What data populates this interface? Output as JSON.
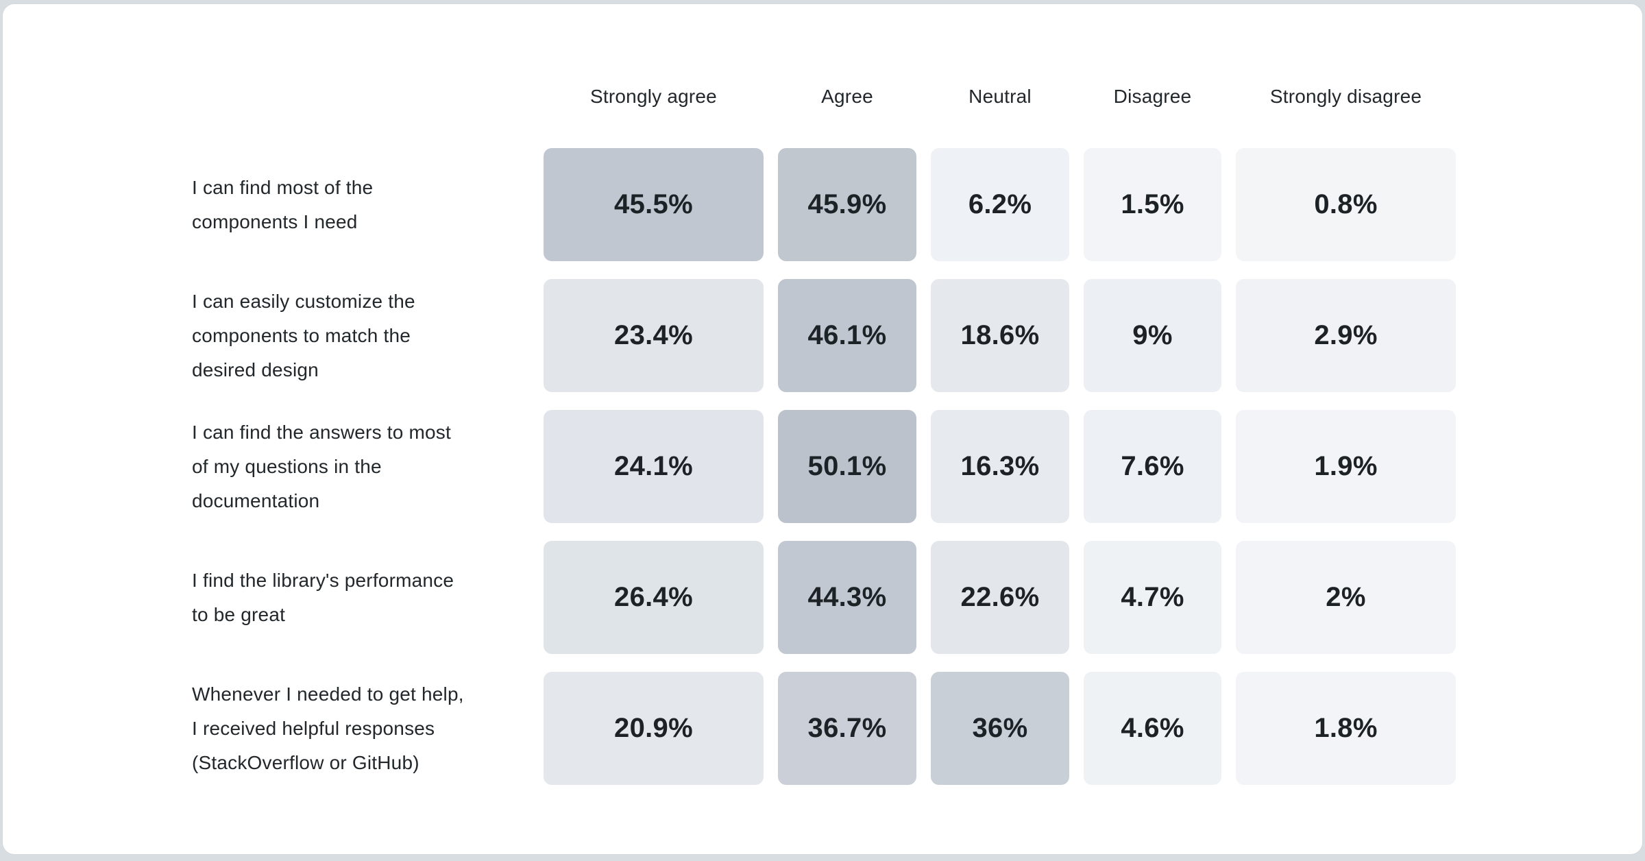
{
  "theme": {
    "page_bg": "#d8dde1",
    "card_bg": "#ffffff",
    "card_border": "#d2d8dc",
    "header_text": "#21272a",
    "label_text": "#21272a",
    "value_text": "#1d2227",
    "cell_color_min": "#f3f5f8",
    "cell_color_max": "#bbc2cc"
  },
  "chart_data": {
    "type": "heatmap",
    "title": "",
    "legend_position": "none",
    "columns": [
      "Strongly agree",
      "Agree",
      "Neutral",
      "Disagree",
      "Strongly disagree"
    ],
    "rows": [
      {
        "label": "I can find most of the\ncomponents I need",
        "values": [
          "45.5%",
          "45.9%",
          "6.2%",
          "1.5%",
          "0.8%"
        ],
        "numeric": [
          45.5,
          45.9,
          6.2,
          1.5,
          0.8
        ],
        "colors": [
          "#c1c7d0",
          "#c0c7cf",
          "#eef1f5",
          "#f2f4f7",
          "#f3f5f7"
        ]
      },
      {
        "label": "I can easily customize the\ncomponents to match the\ndesired design",
        "values": [
          "23.4%",
          "46.1%",
          "18.6%",
          "9%",
          "2.9%"
        ],
        "numeric": [
          23.4,
          46.1,
          18.6,
          9,
          2.9
        ],
        "colors": [
          "#e2e6eb",
          "#c0c6cf",
          "#e5e9ee",
          "#eceff3",
          "#f0f2f6"
        ]
      },
      {
        "label": "I can find the answers to most\nof my questions in the\ndocumentation",
        "values": [
          "24.1%",
          "50.1%",
          "16.3%",
          "7.6%",
          "1.9%"
        ],
        "numeric": [
          24.1,
          50.1,
          16.3,
          7.6,
          1.9
        ],
        "colors": [
          "#e1e5eb",
          "#bbc2cc",
          "#e7eaef",
          "#edf0f4",
          "#f2f4f7"
        ]
      },
      {
        "label": "I find the library's performance\nto be great",
        "values": [
          "26.4%",
          "44.3%",
          "22.6%",
          "4.7%",
          "2%"
        ],
        "numeric": [
          26.4,
          44.3,
          22.6,
          4.7,
          2
        ],
        "colors": [
          "#dfe4e9",
          "#c2c8d1",
          "#e3e7ec",
          "#eff2f5",
          "#f2f4f7"
        ]
      },
      {
        "label": "Whenever I needed to get help,\nI received helpful responses\n(StackOverflow or GitHub)",
        "values": [
          "20.9%",
          "36.7%",
          "36%",
          "4.6%",
          "1.8%"
        ],
        "numeric": [
          20.9,
          36.7,
          36,
          4.6,
          1.8
        ],
        "colors": [
          "#e4e8ed",
          "#cacfd8",
          "#c9cfd7",
          "#eff2f5",
          "#f2f4f7"
        ]
      }
    ]
  }
}
